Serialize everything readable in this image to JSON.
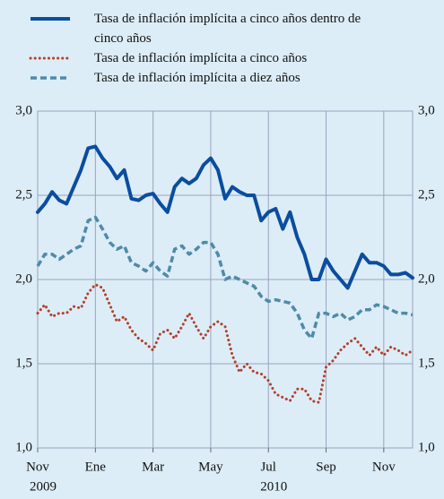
{
  "chart_data": {
    "type": "line",
    "categories": [
      "Nov",
      null,
      null,
      null,
      null,
      null,
      null,
      null,
      "Ene",
      null,
      null,
      null,
      null,
      null,
      null,
      null,
      "Mar",
      null,
      null,
      null,
      null,
      null,
      null,
      null,
      "May",
      null,
      null,
      null,
      null,
      null,
      null,
      null,
      "Jul",
      null,
      null,
      null,
      null,
      null,
      null,
      null,
      "Sep",
      null,
      null,
      null,
      null,
      null,
      null,
      null,
      "Nov",
      null,
      null,
      null,
      null
    ],
    "x_years": [
      "2009",
      null,
      null,
      null,
      null,
      null,
      null,
      null,
      null,
      null,
      null,
      null,
      null,
      null,
      null,
      null,
      null,
      null,
      null,
      null,
      null,
      null,
      null,
      null,
      null,
      null,
      null,
      null,
      null,
      null,
      null,
      null,
      "2010",
      null,
      null,
      null,
      null,
      null,
      null,
      null,
      null,
      null,
      null,
      null,
      null,
      null,
      null,
      null,
      null,
      null,
      null,
      null,
      null
    ],
    "series": [
      {
        "name": "Tasa de inflación implícita a cinco años dentro de cinco años",
        "color": "#0b4d9e",
        "style": "solid",
        "values": [
          2.4,
          2.45,
          2.52,
          2.47,
          2.45,
          2.55,
          2.65,
          2.78,
          2.79,
          2.72,
          2.67,
          2.6,
          2.65,
          2.48,
          2.47,
          2.5,
          2.51,
          2.45,
          2.4,
          2.55,
          2.6,
          2.57,
          2.6,
          2.68,
          2.72,
          2.65,
          2.48,
          2.55,
          2.52,
          2.5,
          2.5,
          2.35,
          2.4,
          2.42,
          2.3,
          2.4,
          2.25,
          2.15,
          2.0,
          2.0,
          2.12,
          2.05,
          2.0,
          1.95,
          2.05,
          2.15,
          2.1,
          2.1,
          2.08,
          2.03,
          2.03,
          2.04,
          2.01
        ]
      },
      {
        "name": "Tasa de inflación implícita a cinco años",
        "color": "#b3402c",
        "style": "dotted",
        "values": [
          1.8,
          1.85,
          1.78,
          1.8,
          1.8,
          1.84,
          1.83,
          1.92,
          1.97,
          1.95,
          1.85,
          1.75,
          1.78,
          1.7,
          1.65,
          1.62,
          1.58,
          1.68,
          1.7,
          1.65,
          1.72,
          1.8,
          1.72,
          1.65,
          1.72,
          1.75,
          1.72,
          1.55,
          1.45,
          1.5,
          1.45,
          1.44,
          1.4,
          1.32,
          1.3,
          1.28,
          1.35,
          1.35,
          1.28,
          1.27,
          1.48,
          1.52,
          1.58,
          1.62,
          1.65,
          1.6,
          1.55,
          1.6,
          1.55,
          1.6,
          1.58,
          1.55,
          1.58
        ]
      },
      {
        "name": "Tasa de inflación implícita a diez años",
        "color": "#4f8ba8",
        "style": "dashed",
        "values": [
          2.08,
          2.15,
          2.15,
          2.12,
          2.15,
          2.18,
          2.2,
          2.35,
          2.37,
          2.3,
          2.22,
          2.18,
          2.2,
          2.1,
          2.08,
          2.05,
          2.1,
          2.05,
          2.02,
          2.18,
          2.2,
          2.15,
          2.18,
          2.22,
          2.22,
          2.15,
          2.0,
          2.02,
          2.0,
          1.98,
          1.96,
          1.9,
          1.87,
          1.88,
          1.87,
          1.86,
          1.8,
          1.7,
          1.65,
          1.8,
          1.8,
          1.78,
          1.8,
          1.76,
          1.78,
          1.82,
          1.82,
          1.85,
          1.84,
          1.82,
          1.8,
          1.8,
          1.79
        ]
      }
    ],
    "ylim": [
      1.0,
      3.0
    ],
    "yticks": [
      {
        "value": 1.0,
        "label": "1,0"
      },
      {
        "value": 1.5,
        "label": "1,5"
      },
      {
        "value": 2.0,
        "label": "2,0"
      },
      {
        "value": 2.5,
        "label": "2,5"
      },
      {
        "value": 3.0,
        "label": "3,0"
      }
    ],
    "grid": true
  }
}
